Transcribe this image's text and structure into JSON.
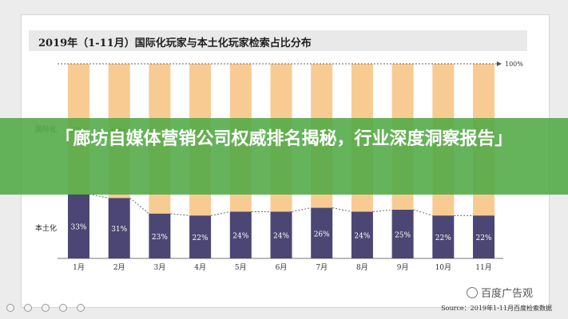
{
  "chart_data": {
    "type": "bar",
    "title": "2019年（1-11月）国际化玩家与本土化玩家检索占比分布",
    "categories": [
      "1月",
      "2月",
      "3月",
      "4月",
      "5月",
      "6月",
      "7月",
      "8月",
      "9月",
      "10月",
      "11月"
    ],
    "series": [
      {
        "name": "本土化",
        "values": [
          33,
          31,
          23,
          22,
          24,
          24,
          26,
          24,
          25,
          22,
          22
        ],
        "color": "#4b4673"
      },
      {
        "name": "国际化",
        "values": [
          67,
          69,
          77,
          78,
          76,
          76,
          74,
          76,
          75,
          78,
          78
        ],
        "color": "#f8cb93"
      }
    ],
    "stacked": true,
    "ylim": [
      0,
      100
    ],
    "reference_label": "100%",
    "top_visible_labels": [
      "67%",
      "69%"
    ],
    "label_suffix": "%"
  },
  "source_text": "Source：2019年1-11月百度检索数据",
  "banner_text": "「廊坊自媒体营销公司权威排名揭秘，行业深度洞察报告」",
  "watermark_text": "百度广告观"
}
